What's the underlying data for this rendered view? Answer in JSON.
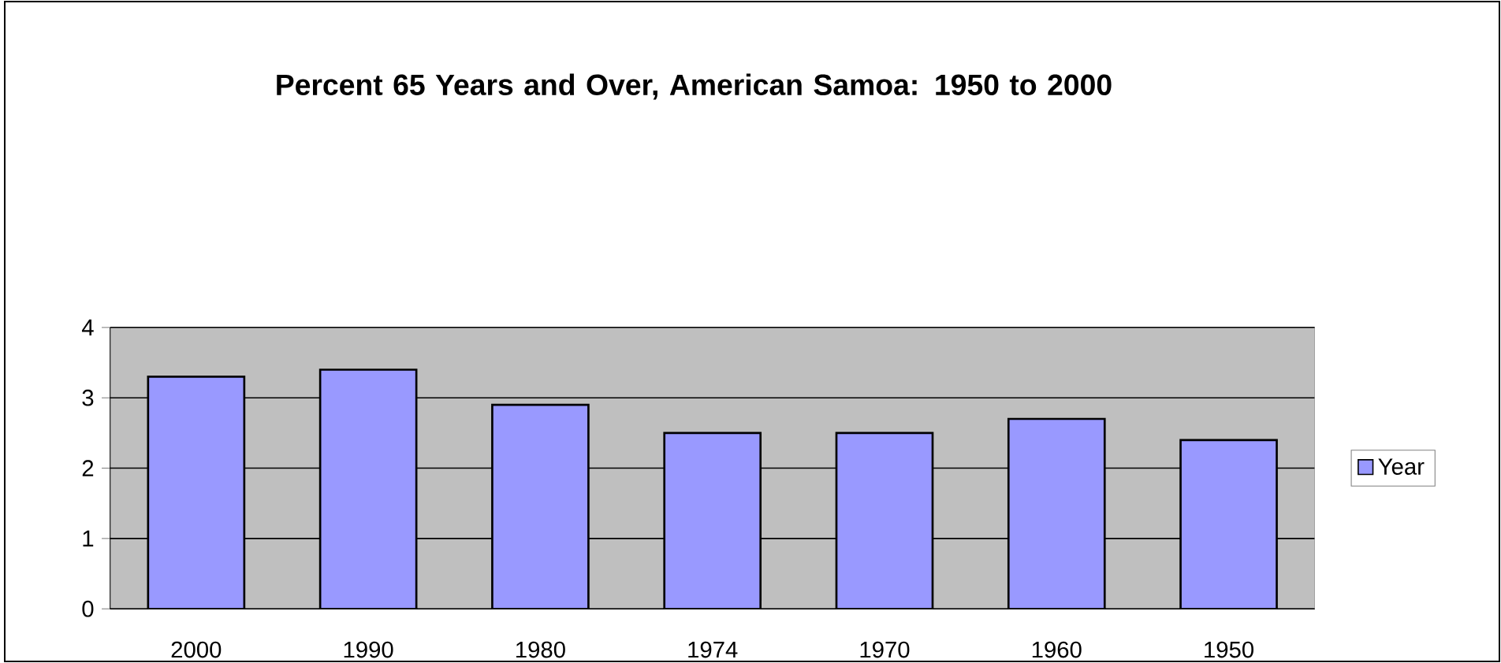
{
  "chart_data": {
    "type": "bar",
    "title": "Percent 65 Years and Over, American Samoa: 1950 to 2000",
    "categories": [
      "2000",
      "1990",
      "1980",
      "1974",
      "1970",
      "1960",
      "1950"
    ],
    "series": [
      {
        "name": "Year",
        "color": "#9999ff",
        "values": [
          3.3,
          3.4,
          2.9,
          2.5,
          2.5,
          2.7,
          2.4
        ]
      }
    ],
    "ylim": [
      0,
      4
    ],
    "yticks": [
      0,
      1,
      2,
      3,
      4
    ],
    "grid": "y",
    "legend": "right"
  }
}
